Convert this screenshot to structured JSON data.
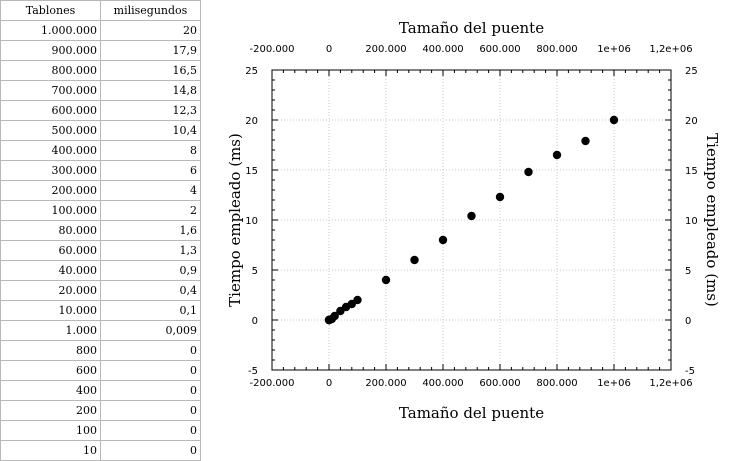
{
  "table": {
    "headers": [
      "Tablones",
      "milisegundos"
    ],
    "rows": [
      [
        "1.000.000",
        "20"
      ],
      [
        "900.000",
        "17,9"
      ],
      [
        "800.000",
        "16,5"
      ],
      [
        "700.000",
        "14,8"
      ],
      [
        "600.000",
        "12,3"
      ],
      [
        "500.000",
        "10,4"
      ],
      [
        "400.000",
        "8"
      ],
      [
        "300.000",
        "6"
      ],
      [
        "200.000",
        "4"
      ],
      [
        "100.000",
        "2"
      ],
      [
        "80.000",
        "1,6"
      ],
      [
        "60.000",
        "1,3"
      ],
      [
        "40.000",
        "0,9"
      ],
      [
        "20.000",
        "0,4"
      ],
      [
        "10.000",
        "0,1"
      ],
      [
        "1.000",
        "0,009"
      ],
      [
        "800",
        "0"
      ],
      [
        "600",
        "0"
      ],
      [
        "400",
        "0"
      ],
      [
        "200",
        "0"
      ],
      [
        "100",
        "0"
      ],
      [
        "10",
        "0"
      ]
    ]
  },
  "chart_data": {
    "type": "scatter",
    "xlabel_top": "Tamaño del puente",
    "xlabel_bottom": "Tamaño del puente",
    "ylabel_left": "Tiempo empleado (ms)",
    "ylabel_right": "Tiempo empleado (ms)",
    "xlim": [
      -200000,
      1200000
    ],
    "ylim": [
      -5,
      25
    ],
    "x_ticks": [
      -200000,
      0,
      200000,
      400000,
      600000,
      800000,
      1000000,
      1200000
    ],
    "x_tick_labels": [
      "-200.000",
      "0",
      "200.000",
      "400.000",
      "600.000",
      "800.000",
      "1e+06",
      "1,2e+06"
    ],
    "y_ticks": [
      -5,
      0,
      5,
      10,
      15,
      20,
      25
    ],
    "y_tick_labels": [
      "-5",
      "0",
      "5",
      "10",
      "15",
      "20",
      "25"
    ],
    "grid": true,
    "marker_color": "#000000",
    "x": [
      1000000,
      900000,
      800000,
      700000,
      600000,
      500000,
      400000,
      300000,
      200000,
      100000,
      80000,
      60000,
      40000,
      20000,
      10000,
      1000,
      800,
      600,
      400,
      200,
      100,
      10
    ],
    "y": [
      20,
      17.9,
      16.5,
      14.8,
      12.3,
      10.4,
      8,
      6,
      4,
      2,
      1.6,
      1.3,
      0.9,
      0.4,
      0.1,
      0.009,
      0,
      0,
      0,
      0,
      0,
      0
    ]
  }
}
